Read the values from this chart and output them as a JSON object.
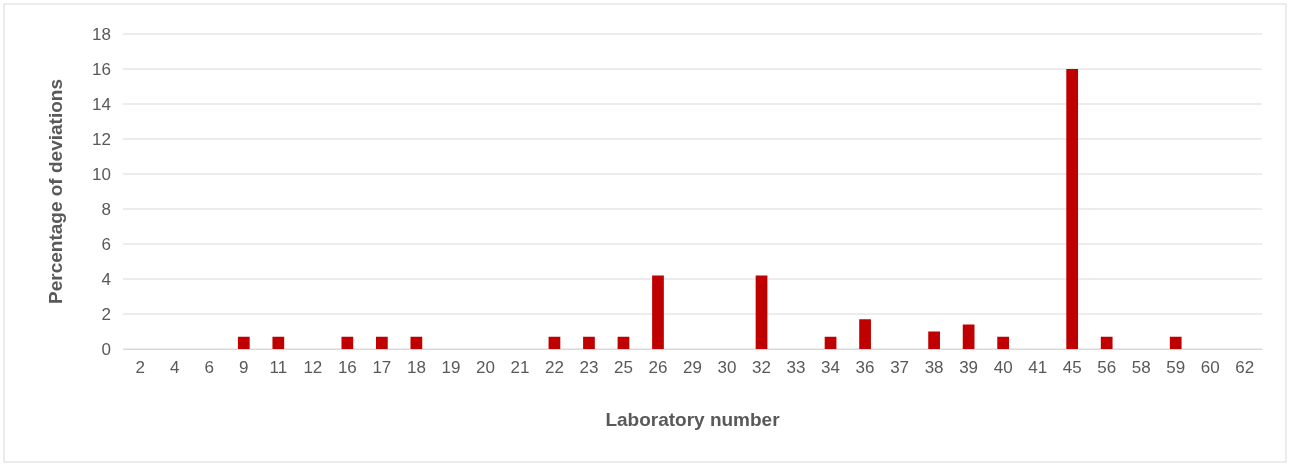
{
  "chart_data": {
    "type": "bar",
    "xlabel": "Laboratory number",
    "ylabel": "Percentage of deviations",
    "categories": [
      "2",
      "4",
      "6",
      "9",
      "11",
      "12",
      "16",
      "17",
      "18",
      "19",
      "20",
      "21",
      "22",
      "23",
      "25",
      "26",
      "29",
      "30",
      "32",
      "33",
      "34",
      "36",
      "37",
      "38",
      "39",
      "40",
      "41",
      "45",
      "56",
      "58",
      "59",
      "60",
      "62"
    ],
    "values": [
      0,
      0,
      0,
      0.7,
      0.7,
      0,
      0.7,
      0.7,
      0.7,
      0,
      0,
      0,
      0.7,
      0.7,
      0.7,
      4.2,
      0,
      0,
      4.2,
      0,
      0.7,
      1.7,
      0,
      1.0,
      1.4,
      0.7,
      0,
      16,
      0.7,
      0,
      0.7,
      0,
      0
    ],
    "color": "#c00000",
    "ylim": [
      0,
      18
    ],
    "yticks": [
      0,
      2,
      4,
      6,
      8,
      10,
      12,
      14,
      16,
      18
    ],
    "grid": "y"
  }
}
